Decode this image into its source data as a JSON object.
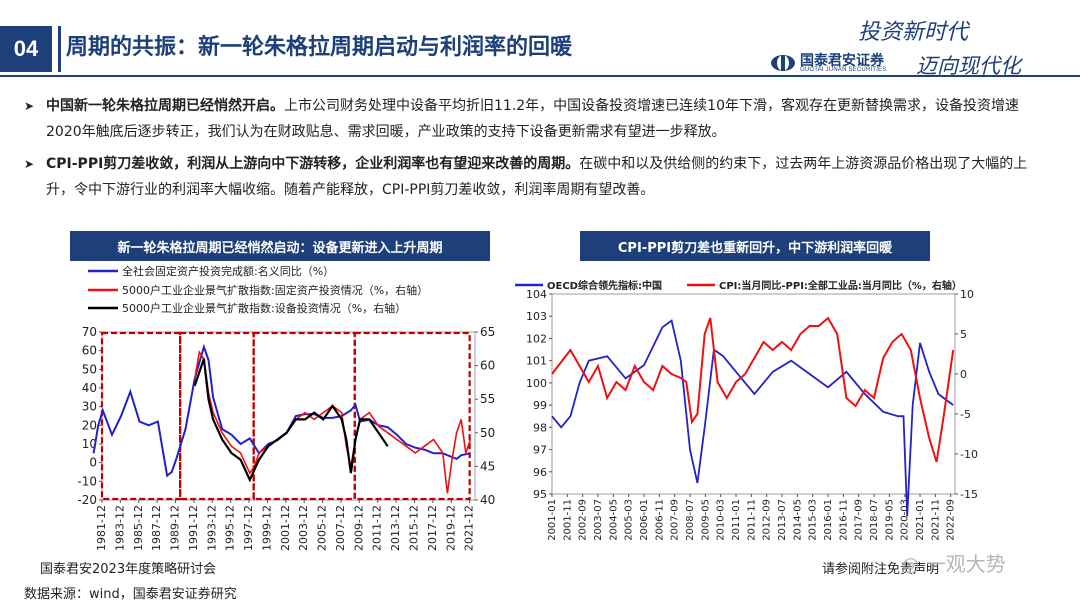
{
  "header": {
    "section_number": "04",
    "title": "周期的共振：新一轮朱格拉周期启动与利润率的回暖",
    "logo_cn": "国泰君安证券",
    "logo_en": "GUOTAI JUNAN SECURITIES",
    "slogan_line1": "投资新时代",
    "slogan_line2": "迈向现代化"
  },
  "bullets": [
    {
      "bold": "中国新一轮朱格拉周期已经悄然开启。",
      "text": "上市公司财务处理中设备平均折旧11.2年，中国设备投资增速已连续10年下滑，客观存在更新替换需求，设备投资增速2020年触底后逐步转正，我们认为在财政贴息、需求回暖，产业政策的支持下设备更新需求有望进一步释放。"
    },
    {
      "bold": "CPI-PPI剪刀差收敛，利润从上游向中下游转移，企业利润率也有望迎来改善的周期。",
      "text": "在碳中和以及供给侧的约束下，过去两年上游资源品价格出现了大幅的上升，令中下游行业的利润率大幅收缩。随着产能释放，CPI-PPI剪刀差收敛，利润率周期有望改善。"
    }
  ],
  "footer": {
    "conference": "国泰君安2023年度策略研讨会",
    "source": "数据来源：wind，国泰君安证券研究",
    "disclaimer": "请参阅附注免责声明",
    "watermark": "一观大势"
  },
  "chart_data": [
    {
      "type": "line",
      "title": "新一轮朱格拉周期已经悄然启动：设备更新进入上升周期",
      "legend": [
        "全社会固定资产投资完成额:名义同比（%）",
        "5000户工业企业景气扩散指数:固定资产投资情况（%，右轴）",
        "5000户工业企业景气扩散指数:设备投资情况（%，右轴）"
      ],
      "colors": [
        "#2222cc",
        "#ee1111",
        "#000000"
      ],
      "x_tick_labels": [
        "1981-12",
        "1983-12",
        "1985-12",
        "1987-12",
        "1989-12",
        "1991-12",
        "1993-12",
        "1995-12",
        "1997-12",
        "1999-12",
        "2001-12",
        "2003-12",
        "2005-12",
        "2007-12",
        "2009-12",
        "2011-12",
        "2013-12",
        "2015-12",
        "2017-12",
        "2019-12",
        "2021-12"
      ],
      "ylim": [
        -20,
        70
      ],
      "y_ticks": [
        -20,
        -10,
        0,
        10,
        20,
        30,
        40,
        50,
        60,
        70
      ],
      "y2lim": [
        40,
        65
      ],
      "y2_ticks": [
        40,
        45,
        50,
        55,
        60,
        65
      ],
      "highlight_periods": [
        [
          "1981-12",
          "1990-06"
        ],
        [
          "1990-06",
          "1998-06"
        ],
        [
          "1998-06",
          "2009-06"
        ],
        [
          "2009-06",
          "2021-12"
        ]
      ],
      "series": [
        {
          "name": "全社会固定资产投资完成额:名义同比（%）",
          "axis": "left",
          "x": [
            1981,
            1981.5,
            1982,
            1983,
            1984,
            1985,
            1985.5,
            1986,
            1987,
            1988,
            1989,
            1989.5,
            1990,
            1991,
            1992,
            1993,
            1993.5,
            1994,
            1995,
            1996,
            1997,
            1998,
            1999,
            2000,
            2001,
            2002,
            2003,
            2004,
            2005,
            2006,
            2007,
            2008,
            2009,
            2009.5,
            2010,
            2011,
            2012,
            2013,
            2014,
            2015,
            2016,
            2017,
            2018,
            2019,
            2020,
            2020.5,
            2021,
            2022
          ],
          "y": [
            5,
            20,
            28,
            15,
            25,
            38,
            30,
            22,
            20,
            22,
            -7,
            -5,
            2,
            18,
            45,
            62,
            55,
            35,
            18,
            15,
            10,
            13,
            5,
            10,
            12,
            16,
            25,
            26,
            26,
            24,
            24,
            25,
            28,
            31,
            22,
            23,
            20,
            19,
            15,
            10,
            8,
            7,
            5,
            5,
            3,
            2,
            4,
            5
          ]
        },
        {
          "name": "5000户工业企业景气扩散指数:固定资产投资情况（%，右轴）",
          "axis": "right",
          "x": [
            1992,
            1992.5,
            1993,
            1993.5,
            1994,
            1995,
            1996,
            1997,
            1998,
            1998.5,
            1999,
            2000,
            2001,
            2002,
            2003,
            2004,
            2005,
            2006,
            2007,
            2008,
            2008.5,
            2009,
            2009.5,
            2010,
            2011,
            2012,
            2013,
            2014,
            2015,
            2016,
            2017,
            2018,
            2019,
            2019.5,
            2020,
            2020.5,
            2021,
            2021.5,
            2022
          ],
          "y": [
            58,
            62,
            61,
            56,
            53,
            50,
            48,
            47,
            44,
            45,
            47,
            48,
            49,
            50,
            52,
            53,
            52,
            53,
            54,
            53,
            48,
            45,
            49,
            52,
            53,
            51,
            50,
            49,
            48,
            47,
            48,
            49,
            47,
            41,
            46,
            50,
            52,
            47,
            49
          ]
        },
        {
          "name": "5000户工业企业景气扩散指数:设备投资情况（%，右轴）",
          "axis": "right",
          "x": [
            1992,
            1992.5,
            1993,
            1993.5,
            1994,
            1995,
            1996,
            1997,
            1998,
            1999,
            2000,
            2001,
            2002,
            2003,
            2004,
            2005,
            2006,
            2007,
            2008,
            2008.5,
            2009,
            2009.5,
            2010,
            2011,
            2012,
            2013
          ],
          "y": [
            57,
            59,
            61,
            55,
            52,
            49,
            47,
            46,
            43,
            46,
            48,
            49,
            50,
            52,
            52,
            53,
            52,
            54,
            52,
            49,
            44,
            49,
            52,
            52,
            50,
            48
          ]
        }
      ]
    },
    {
      "type": "line",
      "title": "CPI-PPI剪刀差也重新回升，中下游利润率回暖",
      "legend": [
        "OECD综合领先指标:中国",
        "CPI:当月同比-PPI:全部工业品:当月同比（%，右轴）"
      ],
      "colors": [
        "#2222cc",
        "#ee1111"
      ],
      "x_tick_labels": [
        "2001-01",
        "2001-11",
        "2002-09",
        "2003-07",
        "2004-05",
        "2005-03",
        "2006-01",
        "2006-11",
        "2007-09",
        "2008-07",
        "2009-05",
        "2010-03",
        "2011-01",
        "2011-11",
        "2012-09",
        "2013-07",
        "2014-05",
        "2015-03",
        "2016-01",
        "2016-11",
        "2017-09",
        "2018-07",
        "2019-05",
        "2020-03",
        "2021-01",
        "2021-11",
        "2022-09"
      ],
      "ylim": [
        95,
        104
      ],
      "y_ticks": [
        95,
        96,
        97,
        98,
        99,
        100,
        101,
        102,
        103,
        104
      ],
      "y2lim": [
        -15,
        10
      ],
      "y2_ticks": [
        -15,
        -10,
        -5,
        0,
        5,
        10
      ],
      "series": [
        {
          "name": "OECD综合领先指标:中国",
          "axis": "left",
          "x": [
            2001,
            2001.5,
            2002,
            2002.5,
            2003,
            2004,
            2005,
            2006,
            2007,
            2007.5,
            2008,
            2008.5,
            2008.9,
            2009.3,
            2009.8,
            2010.3,
            2011,
            2012,
            2013,
            2014,
            2015,
            2016,
            2017,
            2018,
            2019,
            2019.8,
            2020.1,
            2020.3,
            2020.6,
            2021,
            2021.5,
            2022,
            2022.8
          ],
          "y": [
            98.5,
            98,
            98.5,
            100,
            101,
            101.2,
            100.2,
            100.8,
            102.5,
            102.8,
            101,
            97,
            95.5,
            98,
            101.5,
            101.2,
            100.5,
            99.5,
            100.5,
            101,
            100.4,
            99.8,
            100.5,
            99.5,
            98.7,
            98.5,
            98.5,
            94,
            99,
            101.8,
            100.5,
            99.5,
            99
          ]
        },
        {
          "name": "CPI:当月同比-PPI:全部工业品:当月同比（%，右轴）",
          "axis": "right",
          "x": [
            2001,
            2001.5,
            2002,
            2002.5,
            2003,
            2003.5,
            2004,
            2004.5,
            2005,
            2005.5,
            2006,
            2006.5,
            2007,
            2007.5,
            2008,
            2008.3,
            2008.6,
            2008.9,
            2009.3,
            2009.6,
            2010,
            2010.5,
            2011,
            2011.5,
            2012,
            2012.5,
            2013,
            2013.5,
            2014,
            2014.5,
            2015,
            2015.5,
            2016,
            2016.5,
            2017,
            2017.5,
            2018,
            2018.5,
            2019,
            2019.5,
            2020,
            2020.5,
            2021,
            2021.5,
            2021.9,
            2022.3,
            2022.8
          ],
          "y": [
            0,
            1.5,
            3,
            1,
            -1,
            1,
            -3,
            -1,
            -2,
            1,
            -1,
            -2,
            1,
            0,
            -0.5,
            -1,
            -6,
            -5,
            5,
            7,
            -1,
            -3,
            -1,
            0,
            2,
            4,
            3,
            4,
            3,
            5,
            6,
            6,
            7,
            5,
            -3,
            -4,
            -2,
            -3,
            2,
            4,
            5,
            3,
            -3,
            -8,
            -11,
            -5,
            3
          ]
        }
      ]
    }
  ]
}
